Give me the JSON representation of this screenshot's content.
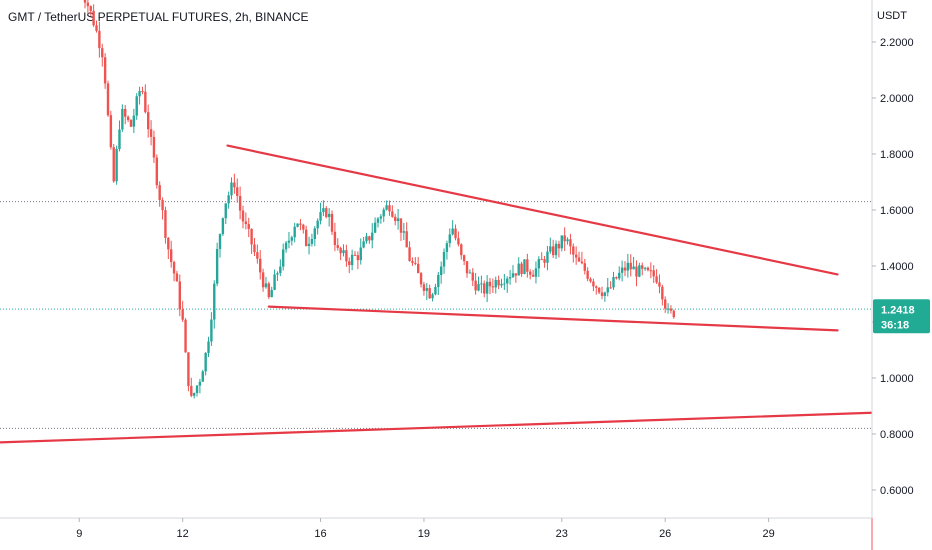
{
  "header": {
    "title": "GMT / TetherUS PERPETUAL FUTURES, 2h, BINANCE"
  },
  "chart_data": {
    "type": "candlestick",
    "symbol": "GMT / TetherUS PERPETUAL FUTURES",
    "interval": "2h",
    "exchange": "BINANCE",
    "y_unit": "USDT",
    "ylim": [
      0.5,
      2.35
    ],
    "xlim": [
      6.7,
      32.0
    ],
    "y_ticks": [
      "2.2000",
      "2.0000",
      "1.8000",
      "1.6000",
      "1.4000",
      "1.2000",
      "1.0000",
      "0.8000",
      "0.6000"
    ],
    "y_tick_values": [
      2.2,
      2.0,
      1.8,
      1.6,
      1.4,
      1.2,
      1.0,
      0.8,
      0.6
    ],
    "x_ticks": [
      "9",
      "12",
      "16",
      "19",
      "23",
      "26",
      "29"
    ],
    "x_tick_values": [
      9,
      12,
      16,
      19,
      23,
      26,
      29
    ],
    "last_price": {
      "value": 1.2418,
      "label": "1.2418",
      "countdown": "36:18"
    },
    "horizontal_levels": [
      1.63,
      1.246,
      0.82
    ],
    "trendlines": [
      {
        "x1": 13.3,
        "y1": 1.83,
        "x2": 31.0,
        "y2": 1.37
      },
      {
        "x1": 14.5,
        "y1": 1.255,
        "x2": 31.0,
        "y2": 1.17
      },
      {
        "x1": 6.7,
        "y1": 0.77,
        "x2": 32.0,
        "y2": 0.876
      }
    ],
    "price_path": [
      [
        9.0,
        2.42
      ],
      [
        9.4,
        2.28
      ],
      [
        9.7,
        2.15
      ],
      [
        9.9,
        1.82
      ],
      [
        10.0,
        1.7
      ],
      [
        10.2,
        1.95
      ],
      [
        10.5,
        1.9
      ],
      [
        10.8,
        2.05
      ],
      [
        11.0,
        1.9
      ],
      [
        11.2,
        1.75
      ],
      [
        11.4,
        1.6
      ],
      [
        11.6,
        1.45
      ],
      [
        11.8,
        1.35
      ],
      [
        12.0,
        1.2
      ],
      [
        12.1,
        1.05
      ],
      [
        12.25,
        0.92
      ],
      [
        12.5,
        1.0
      ],
      [
        12.7,
        1.1
      ],
      [
        12.9,
        1.3
      ],
      [
        13.0,
        1.45
      ],
      [
        13.2,
        1.62
      ],
      [
        13.5,
        1.7
      ],
      [
        13.7,
        1.58
      ],
      [
        14.0,
        1.48
      ],
      [
        14.2,
        1.4
      ],
      [
        14.5,
        1.28
      ],
      [
        14.8,
        1.4
      ],
      [
        15.1,
        1.5
      ],
      [
        15.3,
        1.57
      ],
      [
        15.6,
        1.48
      ],
      [
        15.9,
        1.56
      ],
      [
        16.2,
        1.6
      ],
      [
        16.5,
        1.45
      ],
      [
        16.8,
        1.42
      ],
      [
        17.1,
        1.44
      ],
      [
        17.4,
        1.5
      ],
      [
        17.7,
        1.58
      ],
      [
        18.0,
        1.62
      ],
      [
        18.3,
        1.55
      ],
      [
        18.6,
        1.42
      ],
      [
        18.9,
        1.35
      ],
      [
        19.2,
        1.3
      ],
      [
        19.5,
        1.4
      ],
      [
        19.8,
        1.55
      ],
      [
        20.1,
        1.42
      ],
      [
        20.4,
        1.35
      ],
      [
        20.7,
        1.31
      ],
      [
        21.0,
        1.34
      ],
      [
        21.3,
        1.36
      ],
      [
        21.6,
        1.38
      ],
      [
        21.9,
        1.4
      ],
      [
        22.2,
        1.38
      ],
      [
        22.5,
        1.43
      ],
      [
        22.8,
        1.46
      ],
      [
        23.1,
        1.5
      ],
      [
        23.4,
        1.42
      ],
      [
        23.7,
        1.38
      ],
      [
        24.0,
        1.33
      ],
      [
        24.3,
        1.3
      ],
      [
        24.6,
        1.36
      ],
      [
        24.9,
        1.4
      ],
      [
        25.2,
        1.38
      ],
      [
        25.5,
        1.37
      ],
      [
        25.8,
        1.36
      ],
      [
        26.1,
        1.22
      ],
      [
        26.3,
        1.2418
      ]
    ]
  }
}
